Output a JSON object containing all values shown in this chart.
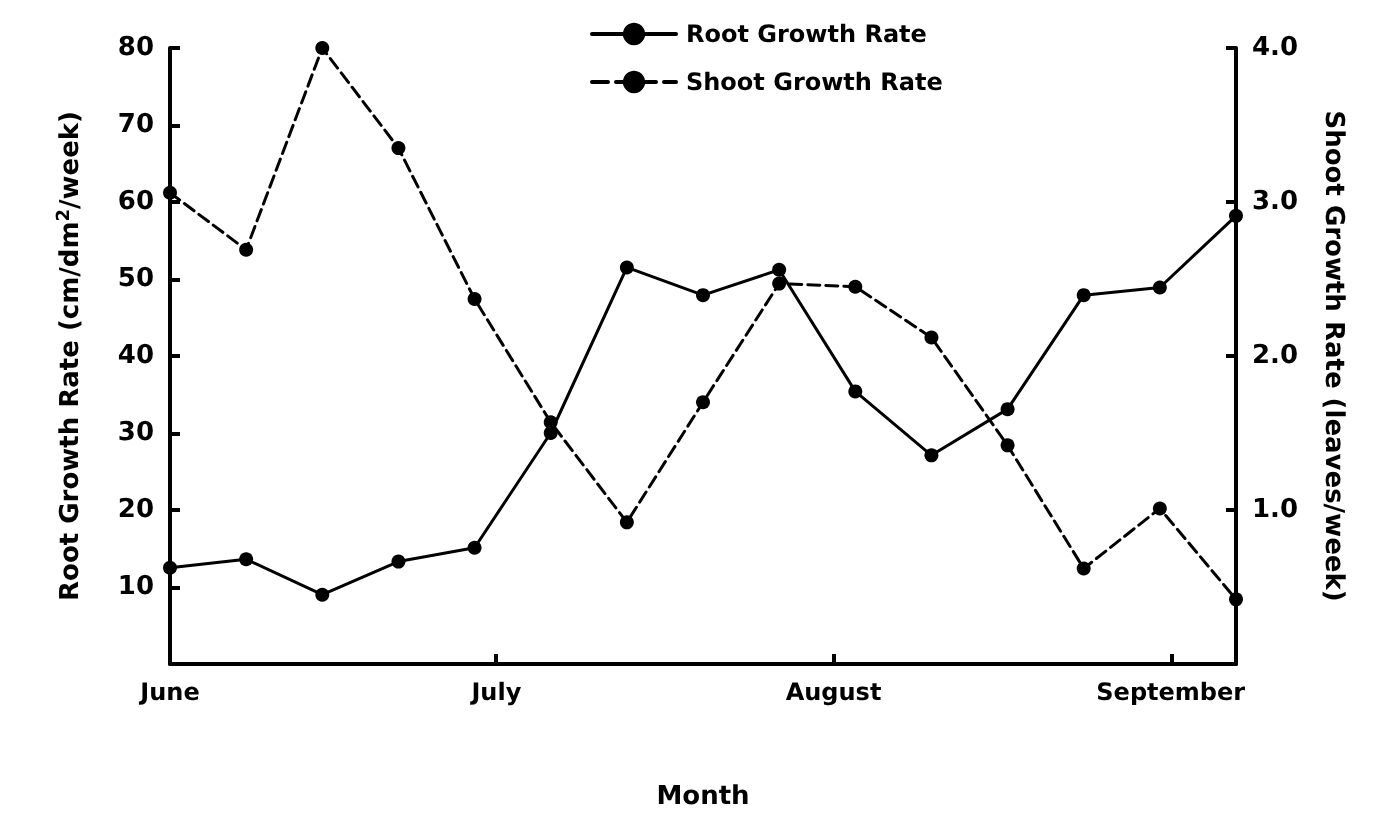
{
  "chart_data": {
    "type": "line",
    "xlabel": "Month",
    "ylabel": "Root Growth Rate (cm/dm$^{2}$/week)",
    "y2label": "Shoot Growth Rate (leaves/week)",
    "x": [
      "--06-01",
      "--06-08",
      "--06-15",
      "--06-22",
      "--06-29",
      "--07-06",
      "--07-13",
      "--07-20",
      "--07-27",
      "--08-03",
      "--08-10",
      "--08-17",
      "--08-24",
      "--08-31",
      "--09-07"
    ],
    "series": [
      {
        "name": "Root Growth Rate",
        "color": "#000000",
        "line_style": "solid",
        "values": [
          12.5,
          13.6,
          9.0,
          13.3,
          15.1,
          30,
          51.5,
          47.9,
          51.2,
          35.4,
          27.1,
          33.1,
          47.9,
          48.9,
          58.2
        ]
      },
      {
        "name": "Shoot Growth Rate",
        "color": "#000000",
        "line_style": "dashed",
        "axis": "y2",
        "values": [
          3.06,
          2.69,
          4.0,
          3.35,
          2.37,
          1.57,
          0.92,
          1.7,
          2.47,
          2.45,
          2.12,
          1.42,
          0.62,
          1.01,
          0.42
        ]
      }
    ],
    "xlim": [
      "--06-01",
      "--09-07"
    ],
    "xticks": [
      {
        "value": "--06-01",
        "label": "June"
      },
      {
        "value": "--07-01",
        "label": "July"
      },
      {
        "value": "--08-01",
        "label": "August"
      },
      {
        "value": "--09-01",
        "label": "September"
      }
    ],
    "ylim": [
      0,
      80
    ],
    "yticks": [
      10,
      20,
      30,
      40,
      50,
      60,
      70,
      80
    ],
    "y2lim": [
      0,
      4
    ],
    "y2ticks": [
      {
        "value": 1,
        "label": "1.0"
      },
      {
        "value": 2,
        "label": "2.0"
      },
      {
        "value": 3,
        "label": "3.0"
      },
      {
        "value": 4,
        "label": "4.0"
      }
    ],
    "legend": "top",
    "marker": "circle",
    "grid": false
  }
}
